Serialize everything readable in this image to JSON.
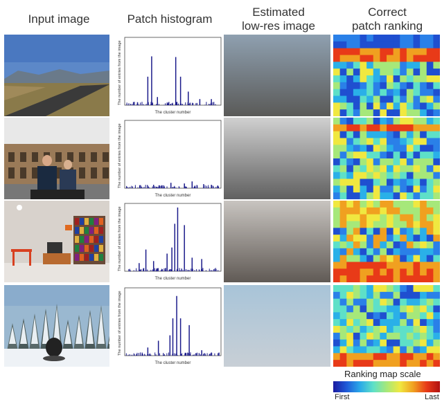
{
  "headers": {
    "col1": "Input image",
    "col2": "Patch histogram",
    "col3_line1": "Estimated",
    "col3_line2": "low-res image",
    "col4_line1": "Correct",
    "col4_line2": "patch ranking"
  },
  "histogram_axis": {
    "ylabel": "The number of entries from the image",
    "xlabel": "The cluster number"
  },
  "scale": {
    "title": "Ranking map scale",
    "first": "First",
    "last": "Last"
  },
  "rows": [
    {
      "photo": "road-landscape",
      "lowres_top": "#8fa0b0",
      "lowres_bottom": "#5a5a58",
      "peaks": [
        [
          0.28,
          0.72
        ],
        [
          0.53,
          0.71
        ],
        [
          0.24,
          0.42
        ],
        [
          0.58,
          0.42
        ],
        [
          0.66,
          0.2
        ],
        [
          0.34,
          0.12
        ],
        [
          0.78,
          0.09
        ],
        [
          0.9,
          0.09
        ]
      ],
      "heatmap": "row1"
    },
    {
      "photo": "colosseum-couple",
      "lowres_top": "#d0d0d0",
      "lowres_bottom": "#606060",
      "peaks": [
        [
          0.48,
          0.08
        ],
        [
          0.62,
          0.07
        ],
        [
          0.7,
          0.1
        ],
        [
          0.82,
          0.06
        ],
        [
          0.3,
          0.05
        ],
        [
          0.9,
          0.05
        ]
      ],
      "heatmap": "row2"
    },
    {
      "photo": "room-interior",
      "lowres_top": "#c8c4c0",
      "lowres_bottom": "#605a55",
      "peaks": [
        [
          0.55,
          0.94
        ],
        [
          0.52,
          0.7
        ],
        [
          0.62,
          0.68
        ],
        [
          0.49,
          0.35
        ],
        [
          0.22,
          0.32
        ],
        [
          0.44,
          0.26
        ],
        [
          0.7,
          0.2
        ],
        [
          0.8,
          0.18
        ],
        [
          0.3,
          0.15
        ],
        [
          0.15,
          0.12
        ]
      ],
      "heatmap": "row3"
    },
    {
      "photo": "snow-forest",
      "lowres_top": "#a8c4d8",
      "lowres_bottom": "#c8cfd6",
      "peaks": [
        [
          0.54,
          0.88
        ],
        [
          0.5,
          0.55
        ],
        [
          0.58,
          0.55
        ],
        [
          0.67,
          0.45
        ],
        [
          0.47,
          0.3
        ],
        [
          0.35,
          0.22
        ],
        [
          0.24,
          0.12
        ],
        [
          0.8,
          0.08
        ]
      ],
      "heatmap": "row4"
    }
  ]
}
